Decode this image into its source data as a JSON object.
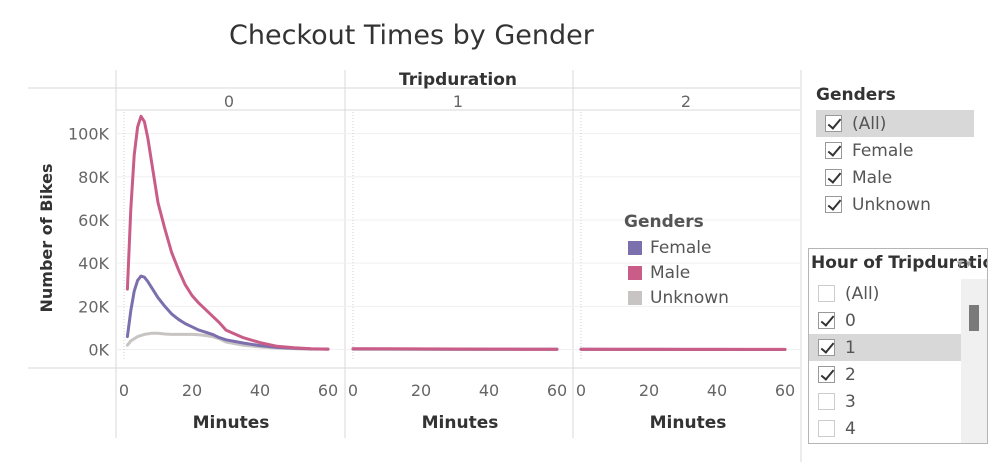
{
  "title": "Checkout Times by Gender",
  "chart_data": {
    "type": "line",
    "title": "Checkout Times by Gender",
    "facet_header": "Tripduration",
    "facets": [
      "0",
      "1",
      "2"
    ],
    "xlabel": "Minutes",
    "ylabel": "Number of Bikes",
    "xlim": [
      0,
      60
    ],
    "ylim": [
      -3000,
      110000
    ],
    "x_ticks": [
      "0",
      "20",
      "40",
      "60"
    ],
    "y_ticks": [
      "0K",
      "20K",
      "40K",
      "60K",
      "80K",
      "100K"
    ],
    "y_tick_values": [
      0,
      20000,
      40000,
      60000,
      80000,
      100000
    ],
    "grid": true,
    "legend": {
      "title": "Genders",
      "placement": "inside-middle-panel"
    },
    "series": [
      {
        "name": "Female",
        "color": "#7b6fad",
        "panels": [
          {
            "x": [
              1,
              2,
              3,
              4,
              5,
              6,
              7,
              8,
              10,
              12,
              14,
              16,
              18,
              20,
              22,
              24,
              26,
              28,
              30,
              35,
              40,
              45,
              50,
              55,
              60
            ],
            "y": [
              6000,
              18000,
              27000,
              32000,
              34000,
              33500,
              31500,
              29000,
              24000,
              20000,
              16500,
              14000,
              12000,
              10500,
              9000,
              8000,
              7000,
              5500,
              4500,
              3000,
              1800,
              1000,
              600,
              300,
              200
            ]
          },
          {
            "x": [
              0,
              10,
              20,
              30,
              40,
              50,
              60
            ],
            "y": [
              300,
              250,
              200,
              150,
              120,
              100,
              80
            ]
          },
          {
            "x": [
              0,
              10,
              20,
              30,
              40,
              50,
              60
            ],
            "y": [
              80,
              70,
              60,
              50,
              40,
              30,
              20
            ]
          }
        ]
      },
      {
        "name": "Male",
        "color": "#c95d87",
        "panels": [
          {
            "x": [
              1,
              2,
              3,
              4,
              5,
              6,
              7,
              8,
              10,
              12,
              14,
              16,
              18,
              20,
              22,
              24,
              26,
              28,
              30,
              35,
              40,
              45,
              50,
              55,
              60
            ],
            "y": [
              28000,
              65000,
              90000,
              103000,
              108000,
              105500,
              98000,
              88000,
              68000,
              56000,
              45000,
              37000,
              30000,
              25000,
              21500,
              18500,
              15500,
              12500,
              9000,
              5500,
              3200,
              1500,
              800,
              400,
              200
            ]
          },
          {
            "x": [
              0,
              10,
              20,
              30,
              40,
              50,
              60
            ],
            "y": [
              400,
              350,
              300,
              250,
              200,
              150,
              100
            ]
          },
          {
            "x": [
              0,
              10,
              20,
              30,
              40,
              50,
              60
            ],
            "y": [
              100,
              90,
              80,
              70,
              60,
              50,
              40
            ]
          }
        ]
      },
      {
        "name": "Unknown",
        "color": "#c9c4c4",
        "panels": [
          {
            "x": [
              1,
              2,
              4,
              6,
              8,
              10,
              12,
              14,
              16,
              18,
              20,
              22,
              24,
              26,
              28,
              30,
              35,
              40,
              45,
              50,
              55,
              60
            ],
            "y": [
              2000,
              4000,
              6000,
              7000,
              7500,
              7500,
              7200,
              7000,
              7000,
              7000,
              7000,
              6800,
              6500,
              6000,
              5000,
              3500,
              2000,
              1200,
              700,
              400,
              200,
              100
            ]
          },
          {
            "x": [
              0,
              10,
              20,
              30,
              40,
              50,
              60
            ],
            "y": [
              100,
              90,
              80,
              70,
              60,
              50,
              40
            ]
          },
          {
            "x": [
              0,
              10,
              20,
              30,
              40,
              50,
              60
            ],
            "y": [
              30,
              25,
              20,
              15,
              10,
              8,
              5
            ]
          }
        ]
      }
    ]
  },
  "filters": {
    "genders": {
      "title": "Genders",
      "items": [
        {
          "label": "(All)",
          "checked": true,
          "highlighted": true
        },
        {
          "label": "Female",
          "checked": true
        },
        {
          "label": "Male",
          "checked": true
        },
        {
          "label": "Unknown",
          "checked": true
        }
      ]
    },
    "hour": {
      "title": "Hour of Tripduration",
      "menu_icon": "dropdown-menu-icon",
      "items": [
        {
          "label": "(All)",
          "checked": false
        },
        {
          "label": "0",
          "checked": true
        },
        {
          "label": "1",
          "checked": true,
          "highlighted": true
        },
        {
          "label": "2",
          "checked": true
        },
        {
          "label": "3",
          "checked": false
        },
        {
          "label": "4",
          "checked": false
        }
      ]
    }
  }
}
